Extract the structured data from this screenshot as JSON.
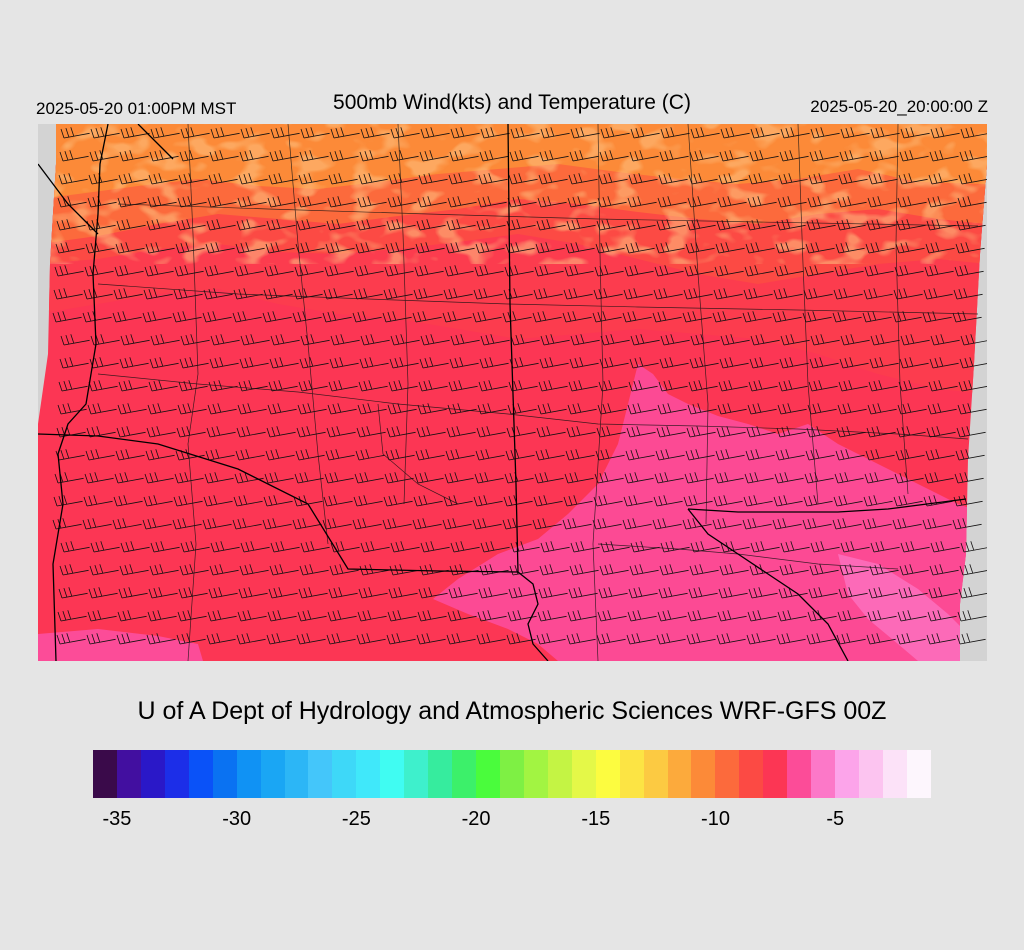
{
  "header": {
    "local_time": "2025-05-20 01:00PM MST",
    "title": "500mb Wind(kts) and Temperature (C)",
    "utc_time": "2025-05-20_20:00:00 Z"
  },
  "footer": {
    "credit": "U of A Dept of Hydrology and Atmospheric Sciences WRF-GFS 00Z"
  },
  "colorbar": {
    "colors": [
      "#3a0a4a",
      "#420fa0",
      "#2a18c8",
      "#1c2ee8",
      "#0a52f8",
      "#0a72f2",
      "#1092f4",
      "#1aa6f4",
      "#2cb6f6",
      "#44c6fa",
      "#3ed8f8",
      "#40e8fa",
      "#40fcf2",
      "#3ef0cc",
      "#36ec9e",
      "#3cf06a",
      "#4afc3c",
      "#7ef044",
      "#a2f442",
      "#c4f444",
      "#e4f848",
      "#fcfc40",
      "#fce444",
      "#fcca42",
      "#fcaa3c",
      "#fc8a38",
      "#fc6a3c",
      "#fc4a44",
      "#fc3654",
      "#fc4c98",
      "#fc78c8",
      "#fca4ea",
      "#fcc4f0",
      "#fce2f8",
      "#fdf6fd"
    ],
    "tick_labels": [
      {
        "label": "-35",
        "value": -35
      },
      {
        "label": "-30",
        "value": -30
      },
      {
        "label": "-25",
        "value": -25
      },
      {
        "label": "-20",
        "value": -20
      },
      {
        "label": "-15",
        "value": -15
      },
      {
        "label": "-10",
        "value": -10
      },
      {
        "label": "-5",
        "value": -5
      }
    ],
    "min": -36,
    "max": -1
  },
  "map": {
    "temperature_colors": {
      "orange": "#fc8a38",
      "red_orange": "#fc4a44",
      "red": "#fc3654",
      "pink": "#fc4c98",
      "panel_background": "#d3d3d3"
    }
  }
}
